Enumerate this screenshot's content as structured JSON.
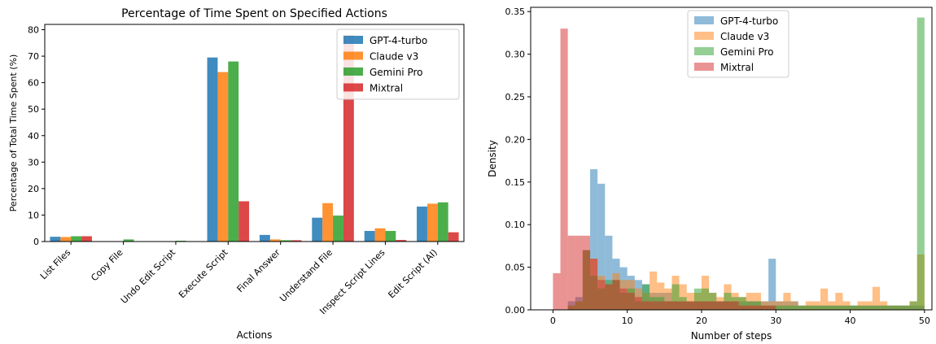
{
  "chart_data": [
    {
      "type": "bar",
      "title": "Percentage of Time Spent on Specified Actions",
      "xlabel": "Actions",
      "ylabel": "Percentage of Total Time Spent (%)",
      "ylim": [
        0,
        82
      ],
      "yticks": [
        0,
        10,
        20,
        30,
        40,
        50,
        60,
        70,
        80
      ],
      "categories": [
        "List Files",
        "Copy File",
        "Undo Edit Script",
        "Execute Script",
        "Final Answer",
        "Understand File",
        "Inspect Script Lines",
        "Edit Script (AI)"
      ],
      "legend_position": "top-right",
      "grid": false,
      "series": [
        {
          "name": "GPT-4-turbo",
          "color": "#1f77b4",
          "values": [
            1.8,
            0,
            0,
            69.5,
            2.5,
            9.0,
            4.0,
            13.2
          ]
        },
        {
          "name": "Claude v3",
          "color": "#ff7f0e",
          "values": [
            1.7,
            0,
            0,
            64.0,
            0.8,
            14.5,
            5.0,
            14.3
          ]
        },
        {
          "name": "Gemini Pro",
          "color": "#2ca02c",
          "values": [
            2.0,
            0.8,
            0.3,
            68.0,
            0.5,
            9.8,
            4.0,
            14.8
          ]
        },
        {
          "name": "Mixtral",
          "color": "#d62728",
          "values": [
            2.0,
            0,
            0,
            15.2,
            0.5,
            78.0,
            0.6,
            3.5
          ]
        }
      ]
    },
    {
      "type": "histogram",
      "title": "",
      "xlabel": "Number of steps",
      "ylabel": "Density",
      "xlim": [
        -3,
        51
      ],
      "ylim": [
        0,
        0.355
      ],
      "xticks": [
        0,
        10,
        20,
        30,
        40,
        50
      ],
      "yticks": [
        "0.00",
        "0.05",
        "0.10",
        "0.15",
        "0.20",
        "0.25",
        "0.30",
        "0.35"
      ],
      "bin_edges_start": 0,
      "bin_width": 1,
      "legend_position": "top-center",
      "grid": false,
      "series": [
        {
          "name": "GPT-4-turbo",
          "color": "#1f77b4",
          "densities": [
            0,
            0,
            0.01,
            0.015,
            0.07,
            0.165,
            0.148,
            0.087,
            0.06,
            0.05,
            0.04,
            0.035,
            0.03,
            0.02,
            0.02,
            0.02,
            0.01,
            0.01,
            0.01,
            0.01,
            0.01,
            0.01,
            0.01,
            0.01,
            0.01,
            0.01,
            0.01,
            0.01,
            0.01,
            0.06,
            0.01,
            0.01,
            0.01,
            0.005,
            0.005,
            0.005,
            0.005,
            0.005,
            0.005,
            0.005,
            0.005,
            0.005,
            0.005,
            0.005,
            0.005,
            0.005,
            0.005,
            0.005,
            0.005,
            0.005
          ]
        },
        {
          "name": "Claude v3",
          "color": "#ff7f0e",
          "densities": [
            0,
            0,
            0.005,
            0.01,
            0.07,
            0.06,
            0.04,
            0.03,
            0.043,
            0.035,
            0.035,
            0.025,
            0.02,
            0.045,
            0.032,
            0.025,
            0.04,
            0.03,
            0.02,
            0.02,
            0.04,
            0.02,
            0.015,
            0.03,
            0.02,
            0.015,
            0.02,
            0.02,
            0.01,
            0.01,
            0.01,
            0.02,
            0.01,
            0.005,
            0.01,
            0.01,
            0.025,
            0.01,
            0.02,
            0.01,
            0.005,
            0.01,
            0.01,
            0.027,
            0.01,
            0.005,
            0.005,
            0.005,
            0.01,
            0.065
          ]
        },
        {
          "name": "Gemini Pro",
          "color": "#2ca02c",
          "densities": [
            0,
            0,
            0.005,
            0.01,
            0.07,
            0.04,
            0.025,
            0.035,
            0.035,
            0.02,
            0.025,
            0.01,
            0.03,
            0.015,
            0.015,
            0.01,
            0.03,
            0.015,
            0.01,
            0.025,
            0.025,
            0.02,
            0.01,
            0.02,
            0.015,
            0.015,
            0.01,
            0.01,
            0.005,
            0.005,
            0.005,
            0.005,
            0.005,
            0.005,
            0.005,
            0.005,
            0.005,
            0.005,
            0.005,
            0.005,
            0.005,
            0.005,
            0.005,
            0.005,
            0.005,
            0.005,
            0.005,
            0.005,
            0.01,
            0.343
          ]
        },
        {
          "name": "Mixtral",
          "color": "#d62728",
          "densities": [
            0.043,
            0.33,
            0.087,
            0.087,
            0.087,
            0.06,
            0.035,
            0.03,
            0.035,
            0.025,
            0.02,
            0.015,
            0.01,
            0.01,
            0.01,
            0.01,
            0.01,
            0.01,
            0.01,
            0.01,
            0.01,
            0.01,
            0.01,
            0.01,
            0.01,
            0.005,
            0.005,
            0.005,
            0.005,
            0.005,
            0,
            0,
            0,
            0,
            0,
            0,
            0,
            0,
            0,
            0,
            0,
            0,
            0,
            0,
            0,
            0,
            0,
            0,
            0,
            0
          ]
        }
      ]
    }
  ]
}
